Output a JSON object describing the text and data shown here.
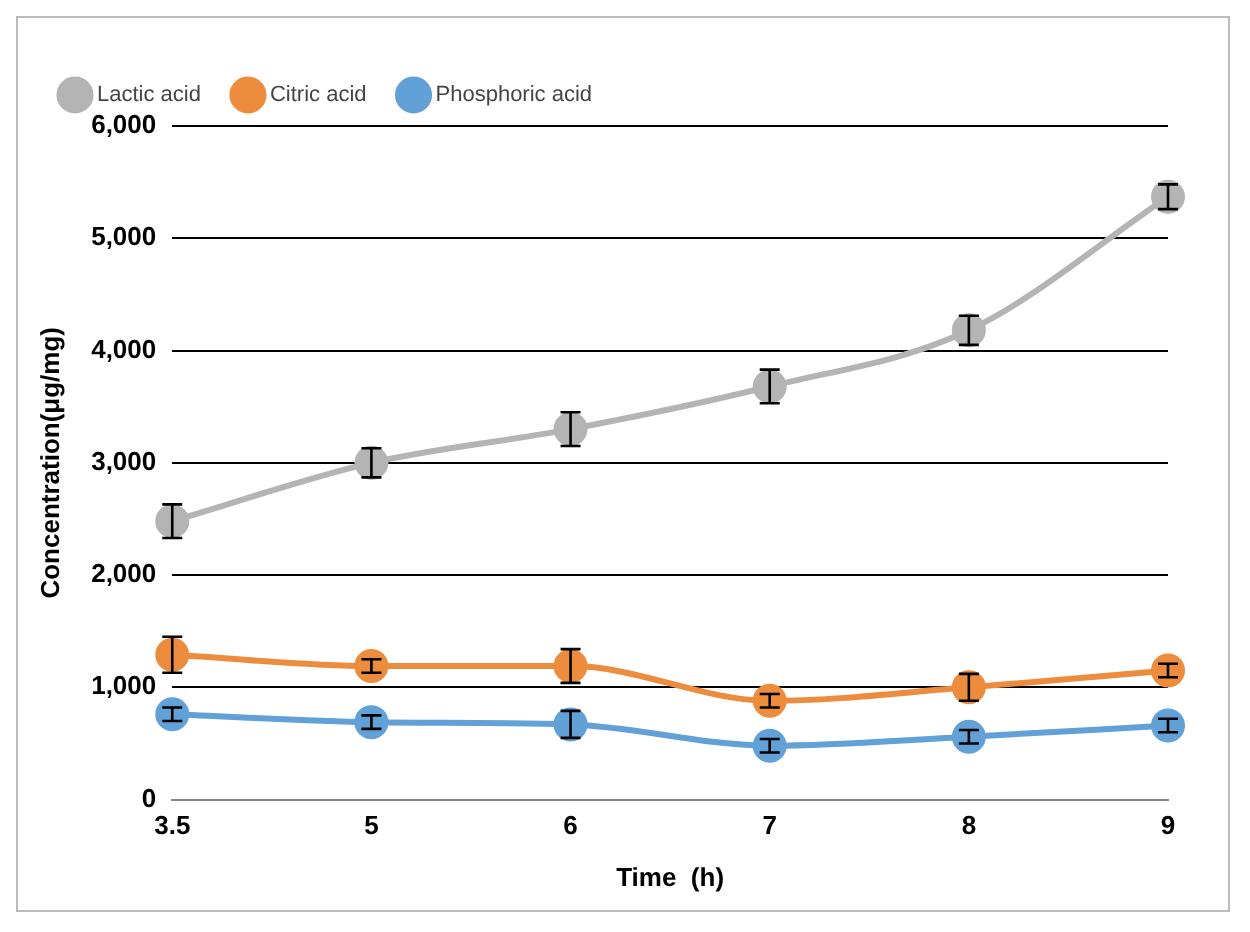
{
  "chart_data": {
    "type": "line",
    "xlabel": "Time  (h)",
    "ylabel": "Concentration(μg/mg)",
    "categories": [
      "3.5",
      "5",
      "6",
      "7",
      "8",
      "9"
    ],
    "series": [
      {
        "name": "Lactic acid",
        "color": "#b4b4b4",
        "values": [
          2480,
          3000,
          3300,
          3680,
          4180,
          5370
        ],
        "errors": [
          150,
          130,
          150,
          150,
          130,
          110
        ]
      },
      {
        "name": "Citric acid",
        "color": "#ed8c3d",
        "values": [
          1290,
          1190,
          1190,
          880,
          1000,
          1150
        ],
        "errors": [
          160,
          60,
          150,
          60,
          120,
          60
        ]
      },
      {
        "name": "Phosphoric acid",
        "color": "#62a0d8",
        "values": [
          760,
          690,
          670,
          480,
          560,
          660
        ],
        "errors": [
          60,
          60,
          120,
          60,
          60,
          60
        ]
      }
    ],
    "ylim": [
      0,
      6000
    ],
    "yticks": [
      {
        "value": 0,
        "label": "0"
      },
      {
        "value": 1000,
        "label": "1,000"
      },
      {
        "value": 2000,
        "label": "2,000"
      },
      {
        "value": 3000,
        "label": "3,000"
      },
      {
        "value": 4000,
        "label": "4,000"
      },
      {
        "value": 5000,
        "label": "5,000"
      },
      {
        "value": 6000,
        "label": "6,000"
      }
    ],
    "grid": "y",
    "legend": "top left",
    "marker": "circle",
    "line_style": "solid"
  }
}
